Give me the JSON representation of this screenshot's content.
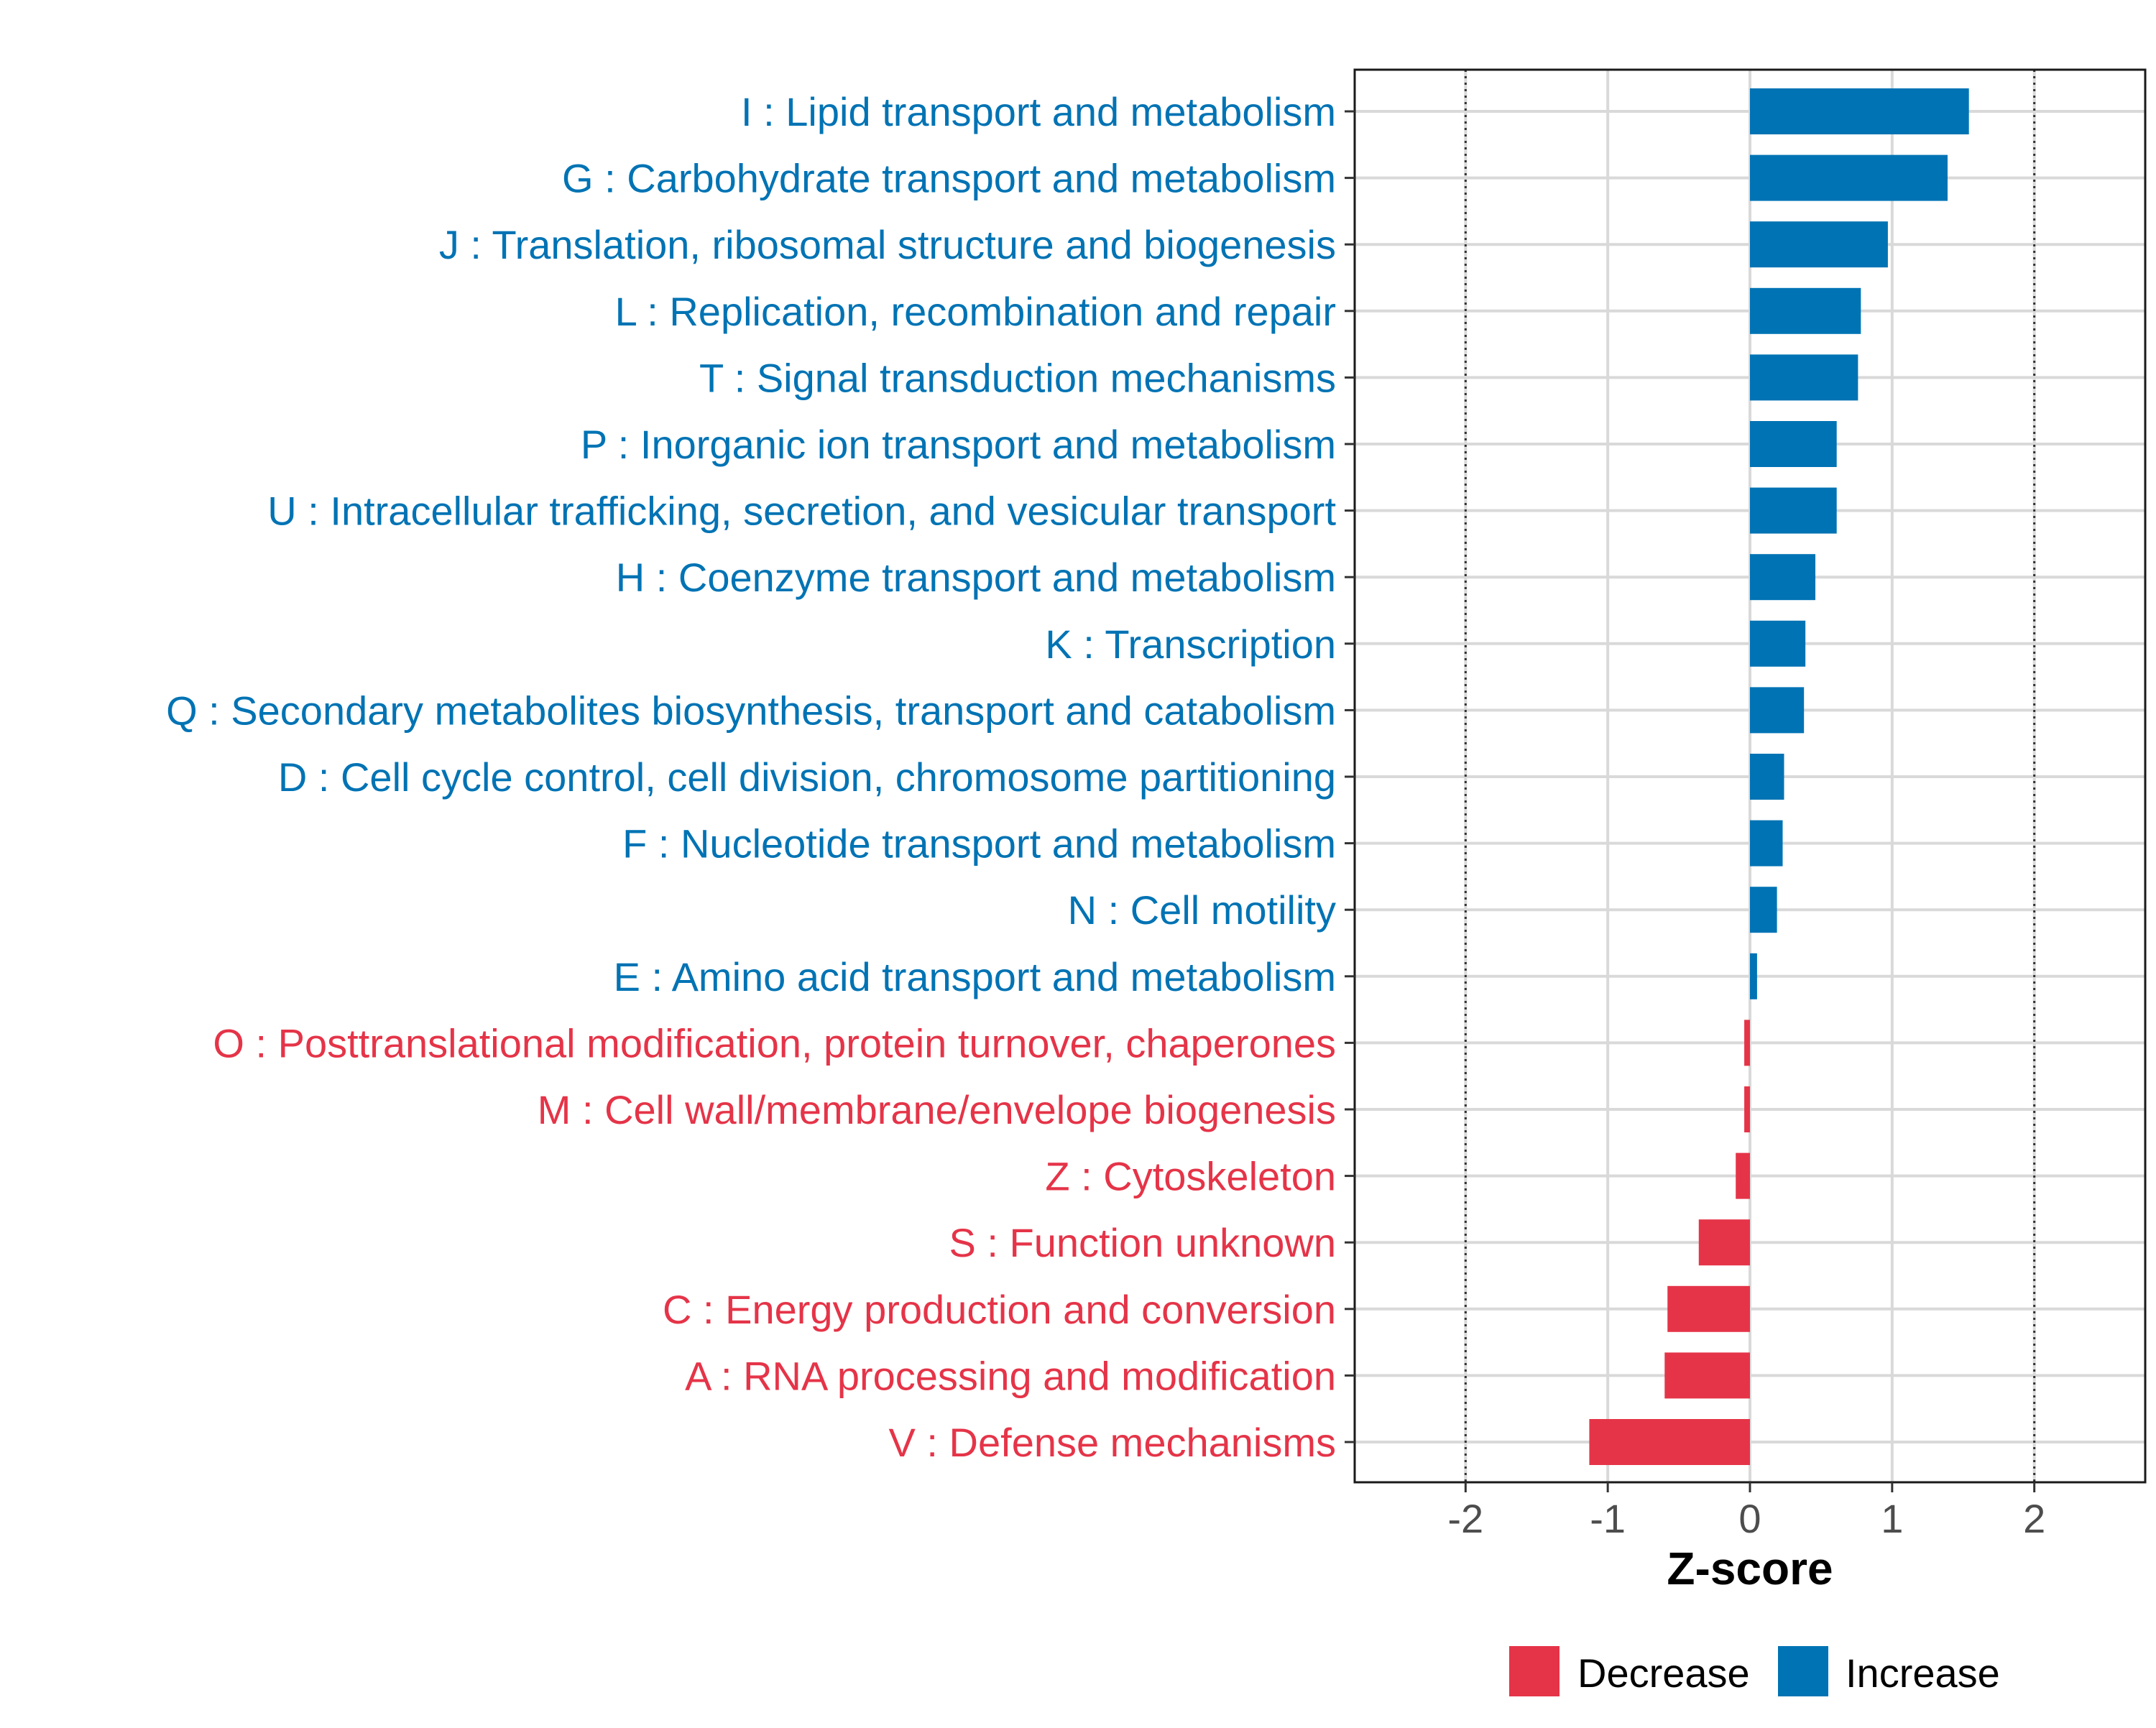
{
  "chart_data": {
    "type": "bar",
    "orientation": "horizontal",
    "xlabel": "Z-score",
    "ylabel": "",
    "xlim": [
      -2.78,
      2.78
    ],
    "x_ticks": [
      -2,
      -1,
      0,
      1,
      2
    ],
    "x_tick_labels": [
      "-2",
      "-1",
      "0",
      "1",
      "2"
    ],
    "reference_lines": [
      -2,
      2
    ],
    "grid": true,
    "legend_position": "bottom",
    "colors": {
      "increase": "#0073b4",
      "decrease": "#e53448",
      "axis_text": "#4d4d4d",
      "grid": "#d9d9d9"
    },
    "legend": [
      {
        "label": "Decrease",
        "color": "#e53448"
      },
      {
        "label": "Increase",
        "color": "#0073b4"
      }
    ],
    "categories": [
      "I : Lipid transport and metabolism",
      "G : Carbohydrate transport and metabolism",
      "J : Translation, ribosomal structure and biogenesis",
      "L : Replication, recombination and repair",
      "T : Signal transduction mechanisms",
      "P : Inorganic ion transport and metabolism",
      "U : Intracellular trafficking, secretion, and vesicular transport",
      "H : Coenzyme transport and metabolism",
      "K : Transcription",
      "Q : Secondary metabolites biosynthesis, transport and catabolism",
      "D : Cell cycle control, cell division, chromosome partitioning",
      "F : Nucleotide transport and metabolism",
      "N : Cell motility",
      "E : Amino acid transport and metabolism",
      "O : Posttranslational modification, protein turnover, chaperones",
      "M : Cell wall/membrane/envelope biogenesis",
      "Z : Cytoskeleton",
      "S : Function unknown",
      "C : Energy production and conversion",
      "A : RNA processing and modification",
      "V : Defense mechanisms"
    ],
    "values": [
      1.54,
      1.39,
      0.97,
      0.78,
      0.76,
      0.61,
      0.61,
      0.46,
      0.39,
      0.38,
      0.24,
      0.23,
      0.19,
      0.05,
      -0.04,
      -0.04,
      -0.1,
      -0.36,
      -0.58,
      -0.6,
      -1.13
    ],
    "groups": [
      "Increase",
      "Increase",
      "Increase",
      "Increase",
      "Increase",
      "Increase",
      "Increase",
      "Increase",
      "Increase",
      "Increase",
      "Increase",
      "Increase",
      "Increase",
      "Increase",
      "Decrease",
      "Decrease",
      "Decrease",
      "Decrease",
      "Decrease",
      "Decrease",
      "Decrease"
    ]
  }
}
